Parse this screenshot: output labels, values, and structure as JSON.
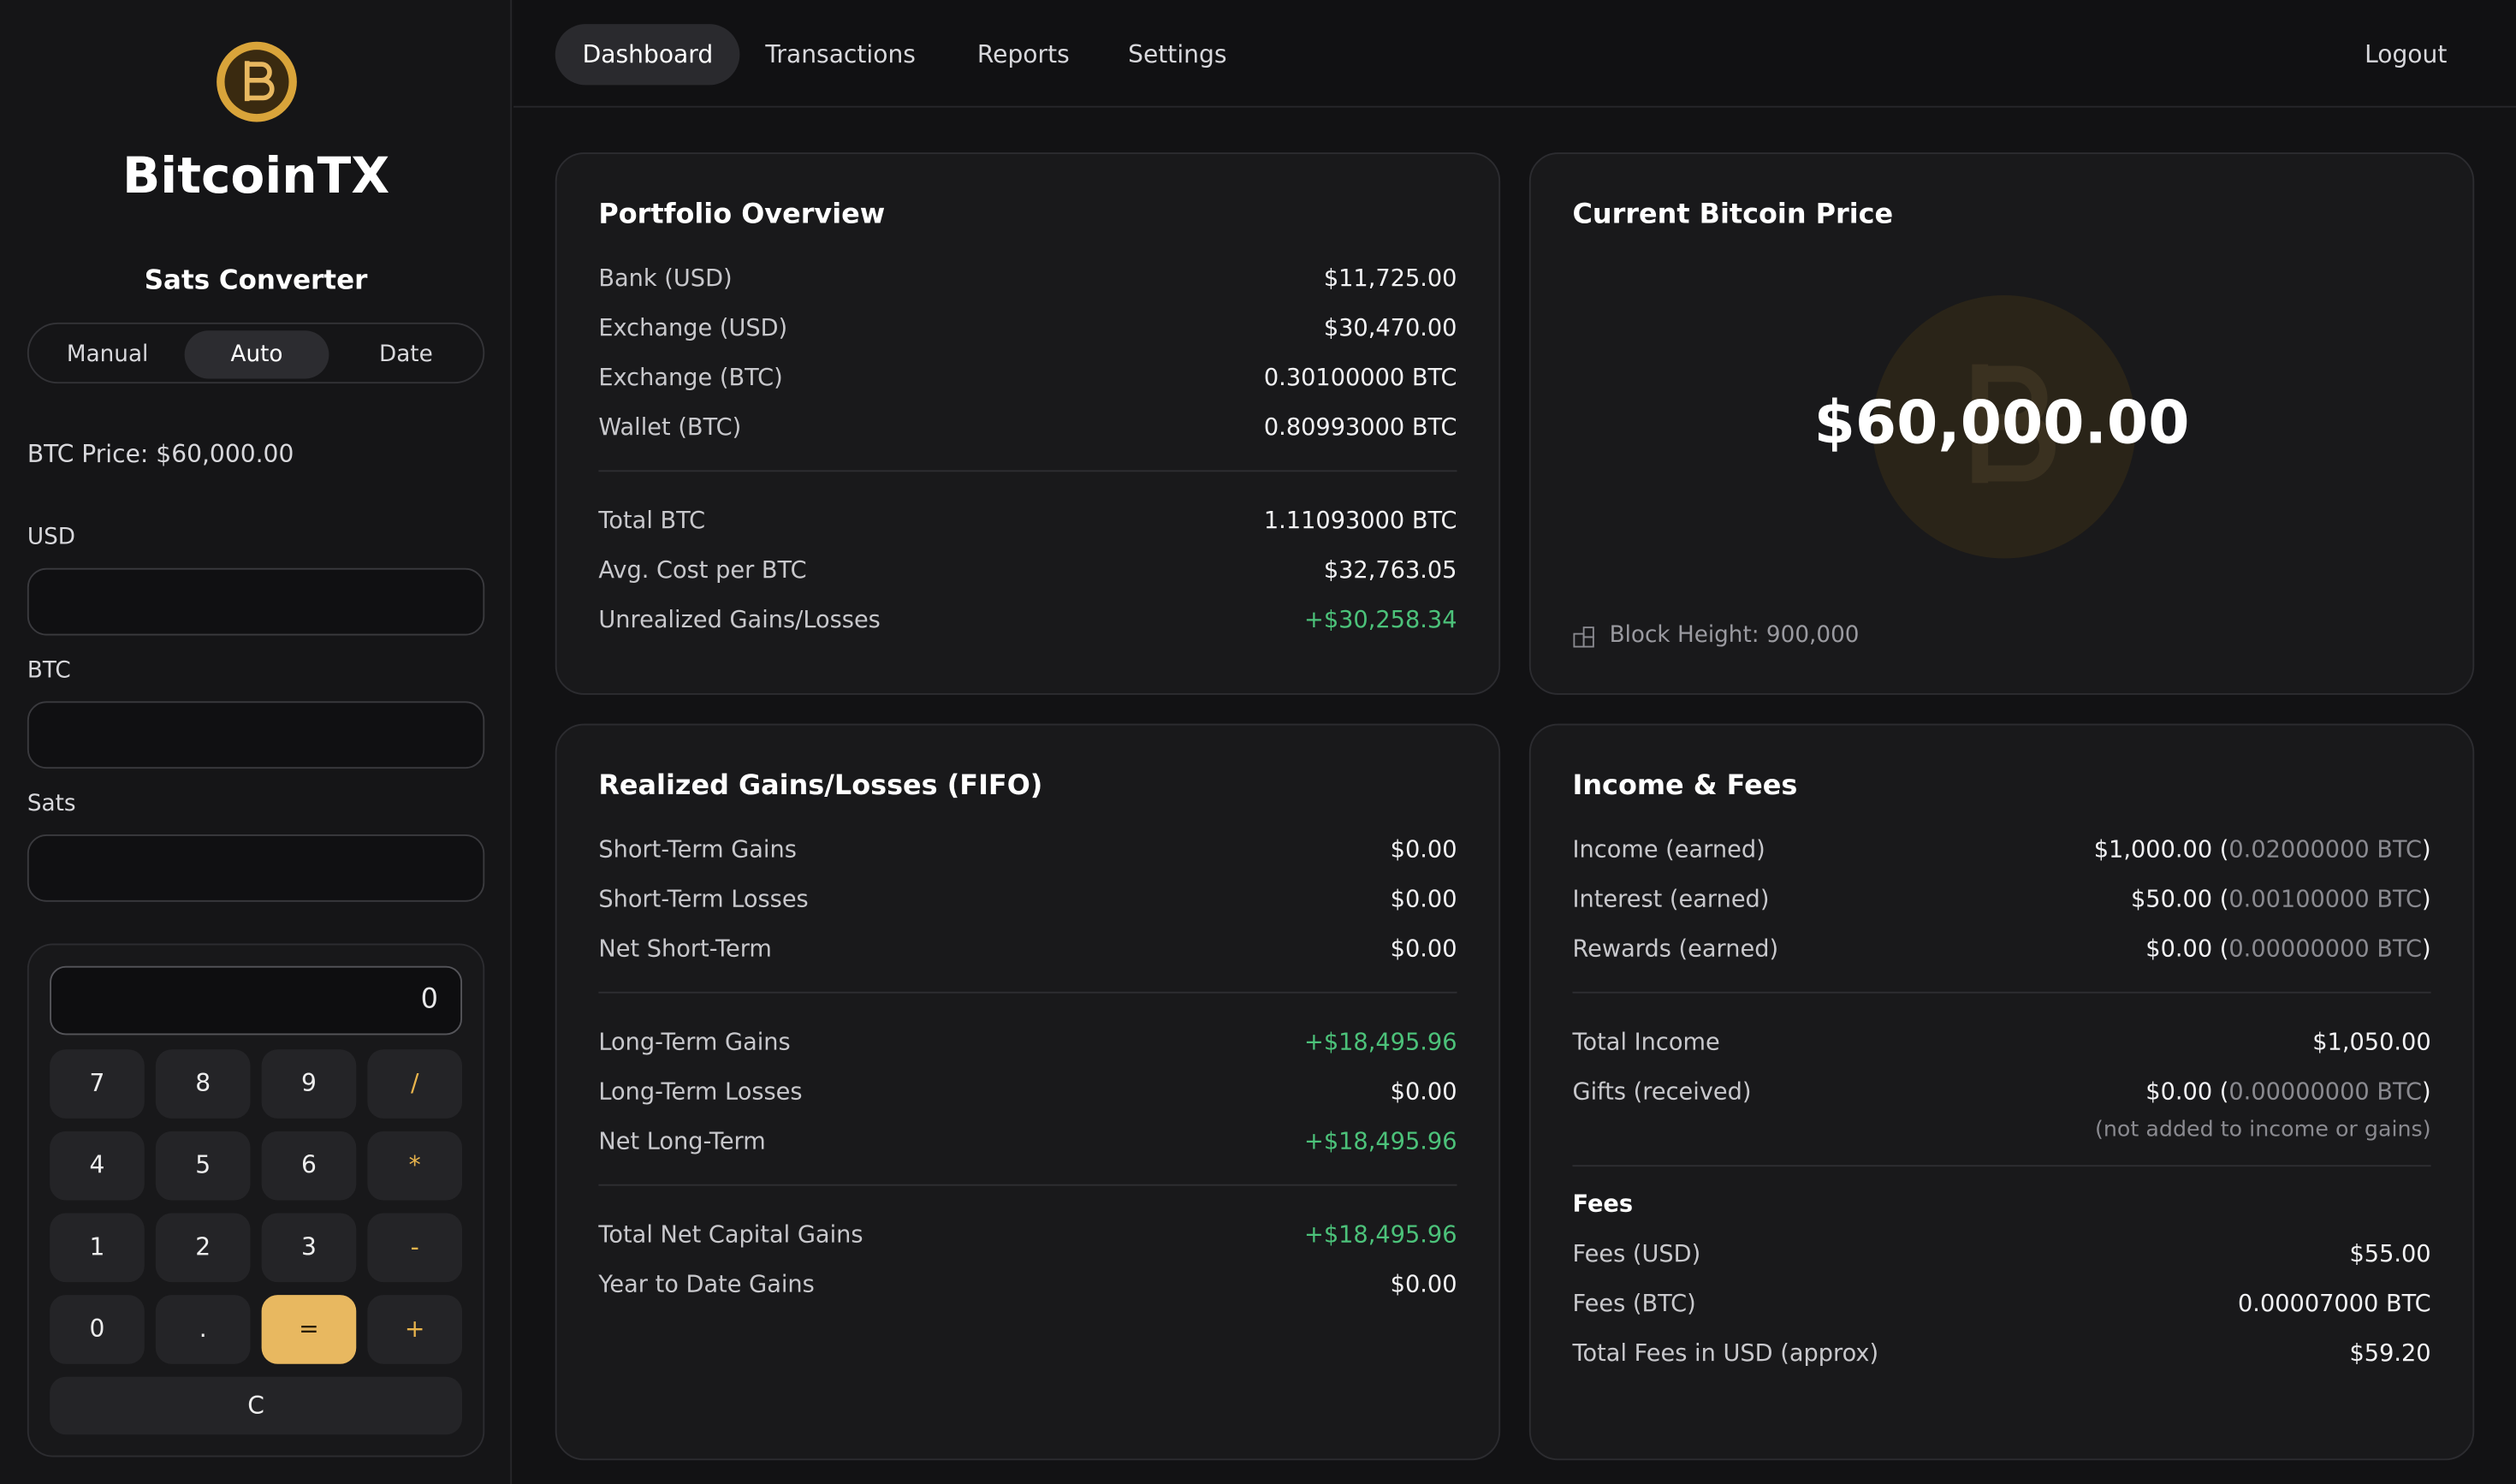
{
  "brand": {
    "name": "BitcoinTX"
  },
  "nav": {
    "items": [
      "Dashboard",
      "Transactions",
      "Reports",
      "Settings"
    ],
    "active": 0,
    "logout": "Logout"
  },
  "converter": {
    "title": "Sats Converter",
    "modes": [
      "Manual",
      "Auto",
      "Date"
    ],
    "active_mode": 1,
    "price_label": "BTC Price: $60,000.00",
    "fields": [
      "USD",
      "BTC",
      "Sats"
    ]
  },
  "calculator": {
    "display": "0",
    "keys": [
      "7",
      "8",
      "9",
      "/",
      "4",
      "5",
      "6",
      "*",
      "1",
      "2",
      "3",
      "-",
      "0",
      ".",
      "=",
      "+"
    ],
    "equals_key": 14,
    "clear": "C"
  },
  "portfolio": {
    "title": "Portfolio Overview",
    "groups": [
      [
        {
          "label": "Bank (USD)",
          "value": "$11,725.00"
        },
        {
          "label": "Exchange (USD)",
          "value": "$30,470.00"
        },
        {
          "label": "Exchange (BTC)",
          "value": "0.30100000 BTC"
        },
        {
          "label": "Wallet (BTC)",
          "value": "0.80993000 BTC"
        }
      ],
      [
        {
          "label": "Total BTC",
          "value": "1.11093000 BTC"
        },
        {
          "label": "Avg. Cost per BTC",
          "value": "$32,763.05"
        },
        {
          "label": "Unrealized Gains/Losses",
          "value": "+$30,258.34",
          "tone": "positive"
        }
      ]
    ]
  },
  "price": {
    "title": "Current Bitcoin Price",
    "value": "$60,000.00",
    "block_height": "Block Height: 900,000"
  },
  "realized": {
    "title": "Realized Gains/Losses (FIFO)",
    "groups": [
      [
        {
          "label": "Short-Term Gains",
          "value": "$0.00"
        },
        {
          "label": "Short-Term Losses",
          "value": "$0.00"
        },
        {
          "label": "Net Short-Term",
          "value": "$0.00"
        }
      ],
      [
        {
          "label": "Long-Term Gains",
          "value": "+$18,495.96",
          "tone": "positive"
        },
        {
          "label": "Long-Term Losses",
          "value": "$0.00"
        },
        {
          "label": "Net Long-Term",
          "value": "+$18,495.96",
          "tone": "positive"
        }
      ],
      [
        {
          "label": "Total Net Capital Gains",
          "value": "+$18,495.96",
          "tone": "positive"
        },
        {
          "label": "Year to Date Gains",
          "value": "$0.00"
        }
      ]
    ]
  },
  "income": {
    "title": "Income & Fees",
    "groups": [
      [
        {
          "label": "Income (earned)",
          "value": "$1,000.00 (",
          "detail": "0.02000000 BTC",
          "end": ")"
        },
        {
          "label": "Interest (earned)",
          "value": "$50.00 (",
          "detail": "0.00100000 BTC",
          "end": ")"
        },
        {
          "label": "Rewards (earned)",
          "value": "$0.00 (",
          "detail": "0.00000000 BTC",
          "end": ")"
        }
      ],
      [
        {
          "label": "Total Income",
          "value": "$1,050.00"
        },
        {
          "label": "Gifts (received)",
          "value": "$0.00 (",
          "detail": "0.00000000 BTC",
          "end": ")"
        }
      ]
    ],
    "note": "(not added to income or gains)",
    "fees_title": "Fees",
    "fees": [
      {
        "label": "Fees (USD)",
        "value": "$55.00"
      },
      {
        "label": "Fees (BTC)",
        "value": "0.00007000 BTC"
      },
      {
        "label": "Total Fees in USD (approx)",
        "value": "$59.20"
      }
    ]
  }
}
